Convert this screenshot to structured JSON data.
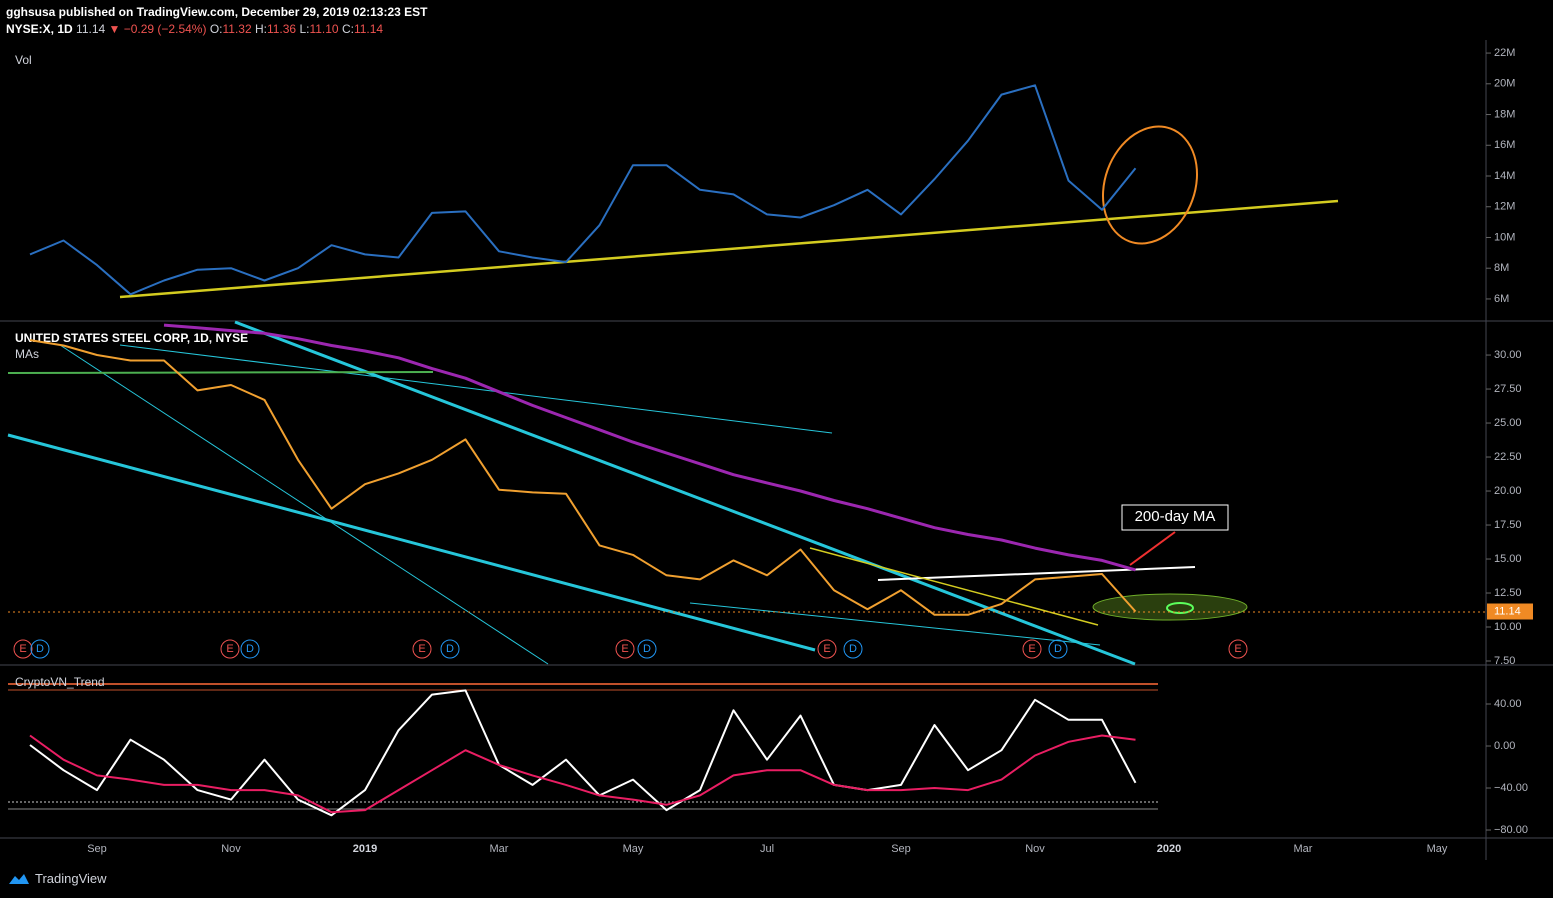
{
  "header": {
    "publisher": "gghsusa published on TradingView.com, December 29, 2019 02:13:23 EST",
    "symbol": "NYSE:X, 1D",
    "last": "11.14",
    "change": "−0.29 (−2.54%)",
    "open_label": "O:",
    "open": "11.32",
    "high_label": "H:",
    "high": "11.36",
    "low_label": "L:",
    "low": "11.10",
    "close_label": "C:",
    "close": "11.14"
  },
  "footer": {
    "brand": "TradingView"
  },
  "chart_data": [
    {
      "type": "line",
      "title": "Vol",
      "ylim": [
        4.63,
        22.85
      ],
      "yticks": [
        {
          "value": 6,
          "label": "6M"
        },
        {
          "value": 8,
          "label": "8M"
        },
        {
          "value": 10,
          "label": "10M"
        },
        {
          "value": 12,
          "label": "12M"
        },
        {
          "value": 14,
          "label": "14M"
        },
        {
          "value": 16,
          "label": "16M"
        },
        {
          "value": 18,
          "label": "18M"
        },
        {
          "value": 20,
          "label": "20M"
        },
        {
          "value": 22,
          "label": "22M"
        }
      ],
      "series": [
        {
          "color": "#2a6fc0",
          "values": [
            8.9,
            9.8,
            8.2,
            6.3,
            7.2,
            7.9,
            8.0,
            7.2,
            8.0,
            9.5,
            8.9,
            8.7,
            11.6,
            11.7,
            9.1,
            8.7,
            8.4,
            10.8,
            14.7,
            14.7,
            13.1,
            12.8,
            11.5,
            11.3,
            12.1,
            13.1,
            11.5,
            13.8,
            16.3,
            19.3,
            19.9,
            13.7,
            11.8,
            14.5,
            null,
            null,
            null,
            null,
            null,
            null,
            null,
            null,
            null,
            null
          ]
        }
      ]
    },
    {
      "type": "line",
      "title": "UNITED STATES STEEL CORP, 1D, NYSE",
      "subtitle": "MAs",
      "annotations": [
        "200-day MA"
      ],
      "event_markers": [
        "E",
        "D",
        "E",
        "D",
        "E",
        "D",
        "E",
        "D",
        "E",
        "D",
        "E",
        "D",
        "E"
      ],
      "ylim": [
        7.28,
        32.43
      ],
      "yticks": [
        {
          "value": 30,
          "label": "30.00"
        },
        {
          "value": 27.5,
          "label": "27.50"
        },
        {
          "value": 25,
          "label": "25.00"
        },
        {
          "value": 22.5,
          "label": "22.50"
        },
        {
          "value": 20,
          "label": "20.00"
        },
        {
          "value": 17.5,
          "label": "17.50"
        },
        {
          "value": 15,
          "label": "15.00"
        },
        {
          "value": 12.5,
          "label": "12.50"
        },
        {
          "value": 10,
          "label": "10.00"
        },
        {
          "value": 7.5,
          "label": "7.50"
        }
      ],
      "series": [
        {
          "color": "#f0a030",
          "values": [
            31.1,
            30.7,
            30.0,
            29.6,
            29.6,
            27.4,
            27.8,
            26.7,
            22.3,
            18.7,
            20.5,
            21.3,
            22.3,
            23.8,
            20.1,
            19.9,
            19.8,
            16.0,
            15.3,
            13.8,
            13.5,
            14.9,
            13.8,
            15.7,
            12.7,
            11.3,
            12.7,
            10.9,
            10.9,
            11.7,
            13.5,
            13.7,
            13.9,
            11.14,
            null,
            null,
            null,
            null,
            null,
            null,
            null,
            null,
            null,
            null
          ]
        },
        {
          "color": "#9c27b0",
          "values": [
            null,
            null,
            null,
            null,
            32.2,
            32.0,
            31.8,
            31.6,
            31.2,
            30.7,
            30.3,
            29.8,
            29.0,
            28.3,
            27.3,
            26.3,
            25.4,
            24.5,
            23.6,
            22.8,
            22.0,
            21.2,
            20.6,
            20.0,
            19.3,
            18.7,
            18.0,
            17.3,
            16.8,
            16.4,
            15.8,
            15.3,
            14.9,
            14.2,
            null,
            null,
            null,
            null,
            null,
            null,
            null,
            null,
            null,
            null
          ]
        }
      ]
    },
    {
      "type": "line",
      "title": "CryptoVN_Trend",
      "categories": [
        null,
        null,
        "Sep",
        null,
        null,
        null,
        "Nov",
        null,
        null,
        null,
        "2019",
        null,
        null,
        null,
        "Mar",
        null,
        null,
        null,
        "May",
        null,
        null,
        null,
        "Jul",
        null,
        null,
        null,
        "Sep",
        null,
        null,
        null,
        "Nov",
        null,
        null,
        null,
        "2020",
        null,
        null,
        null,
        "Mar",
        null,
        null,
        null,
        "May",
        null
      ],
      "ylim": [
        -87.6,
        76.2
      ],
      "yticks": [
        {
          "value": 40,
          "label": "40.00"
        },
        {
          "value": 0,
          "label": "0.00"
        },
        {
          "value": -40,
          "label": "−40.00"
        },
        {
          "value": -80,
          "label": "−80.00"
        }
      ],
      "series": [
        {
          "color": "#ffffff",
          "values": [
            1,
            -23,
            -42,
            6,
            -13,
            -42,
            -51,
            -13,
            -51,
            -66,
            -42,
            15,
            49,
            53,
            -18,
            -37,
            -13,
            -47,
            -32,
            -61,
            -42,
            34,
            -13,
            29,
            -37,
            -42,
            -37,
            20,
            -23,
            -4,
            44,
            25,
            25,
            -35,
            null,
            null,
            null,
            null,
            null,
            null,
            null,
            null,
            null,
            null
          ]
        },
        {
          "color": "#e91e63",
          "values": [
            10,
            -13,
            -28,
            -32,
            -37,
            -37,
            -42,
            -42,
            -47,
            -63,
            -61,
            -42,
            -23,
            -4,
            -18,
            -28,
            -37,
            -47,
            -51,
            -56,
            -47,
            -28,
            -23,
            -23,
            -37,
            -42,
            -42,
            -40,
            -42,
            -32,
            -9,
            4,
            10,
            6,
            null,
            null,
            null,
            null,
            null,
            null,
            null,
            null,
            null,
            null
          ]
        }
      ]
    }
  ]
}
